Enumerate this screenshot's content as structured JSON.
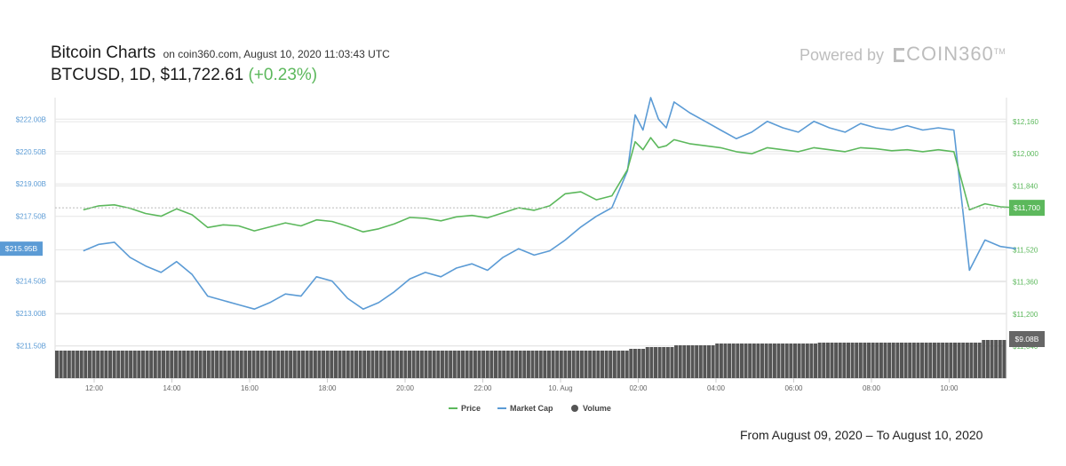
{
  "header": {
    "title": "Bitcoin Charts",
    "subtitle": "on coin360.com, August 10, 2020 11:03:43 UTC",
    "pair_info": "BTCUSD, 1D, $11,722.61",
    "change": "(+0.23%)"
  },
  "brand": {
    "powered_by": "Powered by",
    "name": "COIN360",
    "tm": "TM"
  },
  "footer": {
    "from": "From August 09, 2020",
    "sep": "–",
    "to": "To August 10, 2020"
  },
  "colors": {
    "price": "#5cb85c",
    "market_cap": "#5b9bd5",
    "volume": "#555555",
    "grid": "#e6e6e6"
  },
  "chart_data": {
    "type": "line",
    "x_ticks": [
      "12:00",
      "14:00",
      "16:00",
      "18:00",
      "20:00",
      "22:00",
      "10. Aug",
      "02:00",
      "04:00",
      "06:00",
      "08:00",
      "10:00"
    ],
    "x_range_hours": [
      0,
      24
    ],
    "legend_placement": "bottom-center",
    "grid": true,
    "left_axis": {
      "label": "Market Cap",
      "ticks": [
        "$222.00B",
        "$220.50B",
        "$219.00B",
        "$217.50B",
        "$214.50B",
        "$213.00B",
        "$211.50B"
      ],
      "range": [
        210.0,
        223.0
      ],
      "current_label": "$215.95B"
    },
    "right_axis": {
      "label": "Price",
      "ticks": [
        "$12,160",
        "$12,000",
        "$11,840",
        "$11,520",
        "$11,360",
        "$11,200",
        "$11,040"
      ],
      "range": [
        10880,
        12280
      ],
      "current_label": "$11,700"
    },
    "volume_label": "$9.08B",
    "series": [
      {
        "name": "Price",
        "hours": [
          0.0,
          0.4,
          0.8,
          1.2,
          1.6,
          2.0,
          2.4,
          2.8,
          3.2,
          3.6,
          4.0,
          4.4,
          4.8,
          5.2,
          5.6,
          6.0,
          6.4,
          6.8,
          7.2,
          7.6,
          8.0,
          8.4,
          8.8,
          9.2,
          9.6,
          10.0,
          10.4,
          10.8,
          11.2,
          11.6,
          12.0,
          12.4,
          12.8,
          13.2,
          13.6,
          14.0,
          14.2,
          14.4,
          14.6,
          14.8,
          15.0,
          15.2,
          15.6,
          16.0,
          16.4,
          16.8,
          17.2,
          17.6,
          18.0,
          18.4,
          18.8,
          19.2,
          19.6,
          20.0,
          20.4,
          20.8,
          21.2,
          21.6,
          22.0,
          22.4,
          22.8,
          23.2,
          23.6,
          24.0
        ],
        "values": [
          11720,
          11740,
          11745,
          11728,
          11702,
          11688,
          11725,
          11695,
          11632,
          11645,
          11640,
          11615,
          11635,
          11655,
          11640,
          11670,
          11662,
          11638,
          11610,
          11625,
          11650,
          11682,
          11678,
          11665,
          11685,
          11692,
          11680,
          11705,
          11730,
          11718,
          11740,
          11800,
          11810,
          11770,
          11790,
          11920,
          12060,
          12020,
          12080,
          12030,
          12040,
          12070,
          12050,
          12040,
          12030,
          12010,
          12000,
          12030,
          12020,
          12010,
          12030,
          12020,
          12010,
          12030,
          12025,
          12015,
          12020,
          12010,
          12020,
          12010,
          11720,
          11750,
          11735,
          11730
        ]
      },
      {
        "name": "Market Cap",
        "hours": [
          0.0,
          0.4,
          0.8,
          1.2,
          1.6,
          2.0,
          2.4,
          2.8,
          3.2,
          3.6,
          4.0,
          4.4,
          4.8,
          5.2,
          5.6,
          6.0,
          6.4,
          6.8,
          7.2,
          7.6,
          8.0,
          8.4,
          8.8,
          9.2,
          9.6,
          10.0,
          10.4,
          10.8,
          11.2,
          11.6,
          12.0,
          12.4,
          12.8,
          13.2,
          13.6,
          14.0,
          14.2,
          14.4,
          14.6,
          14.8,
          15.0,
          15.2,
          15.6,
          16.0,
          16.4,
          16.8,
          17.2,
          17.6,
          18.0,
          18.4,
          18.8,
          19.2,
          19.6,
          20.0,
          20.4,
          20.8,
          21.2,
          21.6,
          22.0,
          22.4,
          22.8,
          23.2,
          23.6,
          24.0
        ],
        "values": [
          215.9,
          216.2,
          216.3,
          215.6,
          215.2,
          214.9,
          215.4,
          214.8,
          213.8,
          213.6,
          213.4,
          213.2,
          213.5,
          213.9,
          213.8,
          214.7,
          214.5,
          213.7,
          213.2,
          213.5,
          214.0,
          214.6,
          214.9,
          214.7,
          215.1,
          215.3,
          215.0,
          215.6,
          216.0,
          215.7,
          215.9,
          216.4,
          217.0,
          217.5,
          217.9,
          219.6,
          222.2,
          221.5,
          223.0,
          222.0,
          221.6,
          222.8,
          222.3,
          221.9,
          221.5,
          221.1,
          221.4,
          221.9,
          221.6,
          221.4,
          221.9,
          221.6,
          221.4,
          221.8,
          221.6,
          221.5,
          221.7,
          221.5,
          221.6,
          221.5,
          215.0,
          216.4,
          216.1,
          216.0
        ]
      }
    ]
  },
  "legend": [
    {
      "label": "Price",
      "type": "line"
    },
    {
      "label": "Market Cap",
      "type": "line"
    },
    {
      "label": "Volume",
      "type": "dot"
    }
  ]
}
